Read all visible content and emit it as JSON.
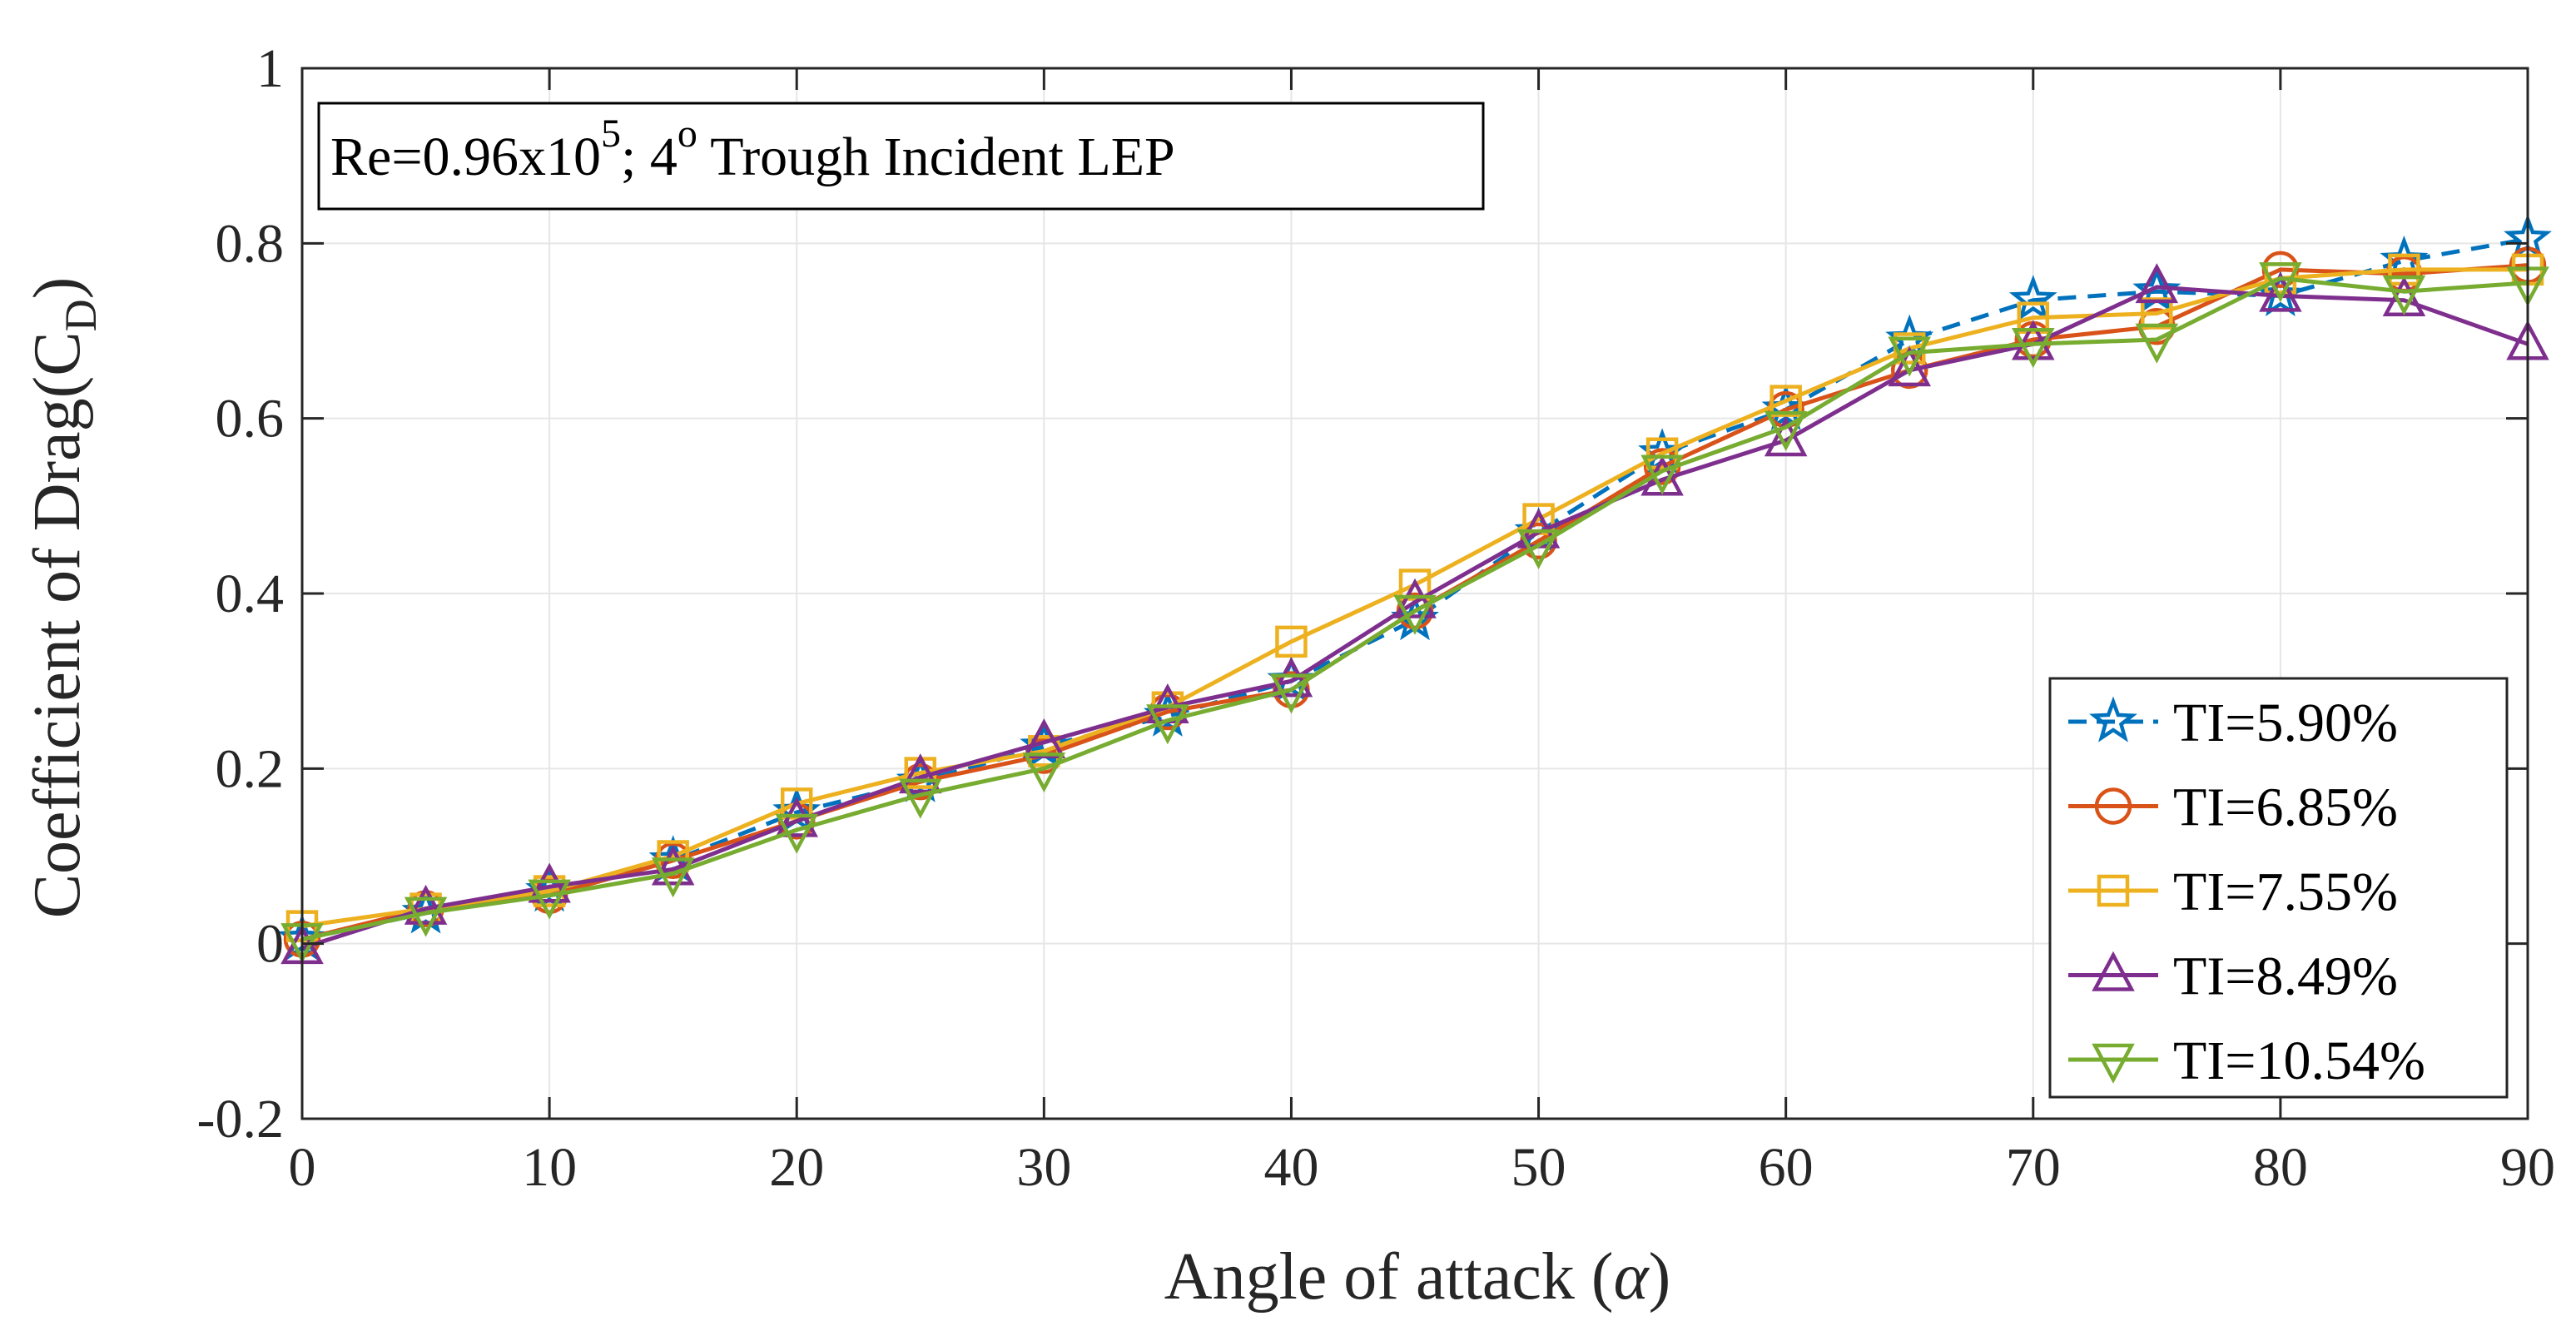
{
  "chart_data": {
    "type": "line",
    "title": "",
    "xlabel_prefix": "Angle of attack (",
    "xlabel_symbol": "α",
    "xlabel_suffix": ")",
    "ylabel_main": "Coefficient of Drag(C",
    "ylabel_sub": "D",
    "ylabel_close": ")",
    "xlim": [
      0,
      90
    ],
    "ylim": [
      -0.2,
      1
    ],
    "xticks": [
      0,
      10,
      20,
      30,
      40,
      50,
      60,
      70,
      80,
      90
    ],
    "yticks": [
      -0.2,
      0,
      0.2,
      0.4,
      0.6,
      0.8,
      1
    ],
    "ytick_labels": [
      "-0.2",
      "0",
      "0.2",
      "0.4",
      "0.6",
      "0.8",
      "1"
    ],
    "grid": true,
    "legend_position": "bottom-right",
    "annotation": {
      "prefix": "Re=0.96x10",
      "exponent": "5",
      "middle": "; 4",
      "degree": "o",
      "suffix": " Trough Incident LEP"
    },
    "x": [
      0,
      5,
      10,
      15,
      20,
      25,
      30,
      35,
      40,
      45,
      50,
      55,
      60,
      65,
      70,
      75,
      80,
      85,
      90
    ],
    "series": [
      {
        "name": "TI=5.90%",
        "color": "#0072BD",
        "marker": "star",
        "dashed": true,
        "values": [
          0.005,
          0.035,
          0.06,
          0.095,
          0.15,
          0.185,
          0.225,
          0.26,
          0.3,
          0.37,
          0.47,
          0.56,
          0.61,
          0.69,
          0.735,
          0.745,
          0.74,
          0.78,
          0.805
        ]
      },
      {
        "name": "TI=6.85%",
        "color": "#D95319",
        "marker": "circle",
        "dashed": false,
        "values": [
          0.005,
          0.04,
          0.055,
          0.095,
          0.14,
          0.185,
          0.215,
          0.265,
          0.29,
          0.38,
          0.46,
          0.545,
          0.61,
          0.655,
          0.69,
          0.705,
          0.77,
          0.765,
          0.775
        ]
      },
      {
        "name": "TI=7.55%",
        "color": "#EDB120",
        "marker": "square",
        "dashed": false,
        "values": [
          0.02,
          0.04,
          0.06,
          0.1,
          0.16,
          0.195,
          0.22,
          0.27,
          0.345,
          0.41,
          0.485,
          0.56,
          0.62,
          0.68,
          0.715,
          0.72,
          0.76,
          0.77,
          0.77
        ]
      },
      {
        "name": "TI=8.49%",
        "color": "#7E2F8E",
        "marker": "triangle-up",
        "dashed": false,
        "values": [
          -0.005,
          0.04,
          0.065,
          0.085,
          0.14,
          0.19,
          0.23,
          0.27,
          0.3,
          0.39,
          0.47,
          0.53,
          0.575,
          0.655,
          0.685,
          0.75,
          0.74,
          0.735,
          0.685
        ]
      },
      {
        "name": "TI=10.54%",
        "color": "#77AC30",
        "marker": "triangle-down",
        "dashed": false,
        "values": [
          0.005,
          0.035,
          0.055,
          0.08,
          0.13,
          0.17,
          0.2,
          0.255,
          0.29,
          0.38,
          0.455,
          0.54,
          0.59,
          0.675,
          0.685,
          0.69,
          0.76,
          0.745,
          0.755
        ]
      }
    ]
  }
}
